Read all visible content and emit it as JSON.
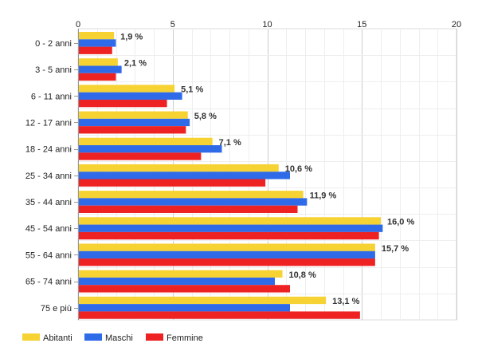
{
  "chart_data": {
    "type": "bar",
    "orientation": "horizontal",
    "categories": [
      "0 - 2 anni",
      "3 - 5 anni",
      "6 - 11 anni",
      "12 - 17 anni",
      "18 - 24 anni",
      "25 - 34 anni",
      "35 - 44 anni",
      "45 - 54 anni",
      "55 - 64 anni",
      "65 - 74 anni",
      "75 e più"
    ],
    "series": [
      {
        "name": "Abitanti",
        "color": "#f7d233",
        "values": [
          1.9,
          2.1,
          5.1,
          5.8,
          7.1,
          10.6,
          11.9,
          16.0,
          15.7,
          10.8,
          13.1
        ]
      },
      {
        "name": "Maschi",
        "color": "#2f6be8",
        "values": [
          2.0,
          2.3,
          5.5,
          5.9,
          7.6,
          11.2,
          12.1,
          16.1,
          15.7,
          10.4,
          11.2
        ]
      },
      {
        "name": "Femmine",
        "color": "#ee2222",
        "values": [
          1.8,
          2.0,
          4.7,
          5.7,
          6.5,
          9.9,
          11.6,
          15.9,
          15.7,
          11.2,
          14.9
        ]
      }
    ],
    "data_labels": [
      "1,9 %",
      "2,1 %",
      "5,1 %",
      "5,8 %",
      "7,1 %",
      "10,6 %",
      "11,9 %",
      "16,0 %",
      "15,7 %",
      "10,8 %",
      "13,1 %"
    ],
    "xlim": [
      0,
      20
    ],
    "xticks": [
      0,
      5,
      10,
      15,
      20
    ],
    "grid": true,
    "legend_position": "bottom-left",
    "title": "",
    "xlabel": "",
    "ylabel": ""
  }
}
